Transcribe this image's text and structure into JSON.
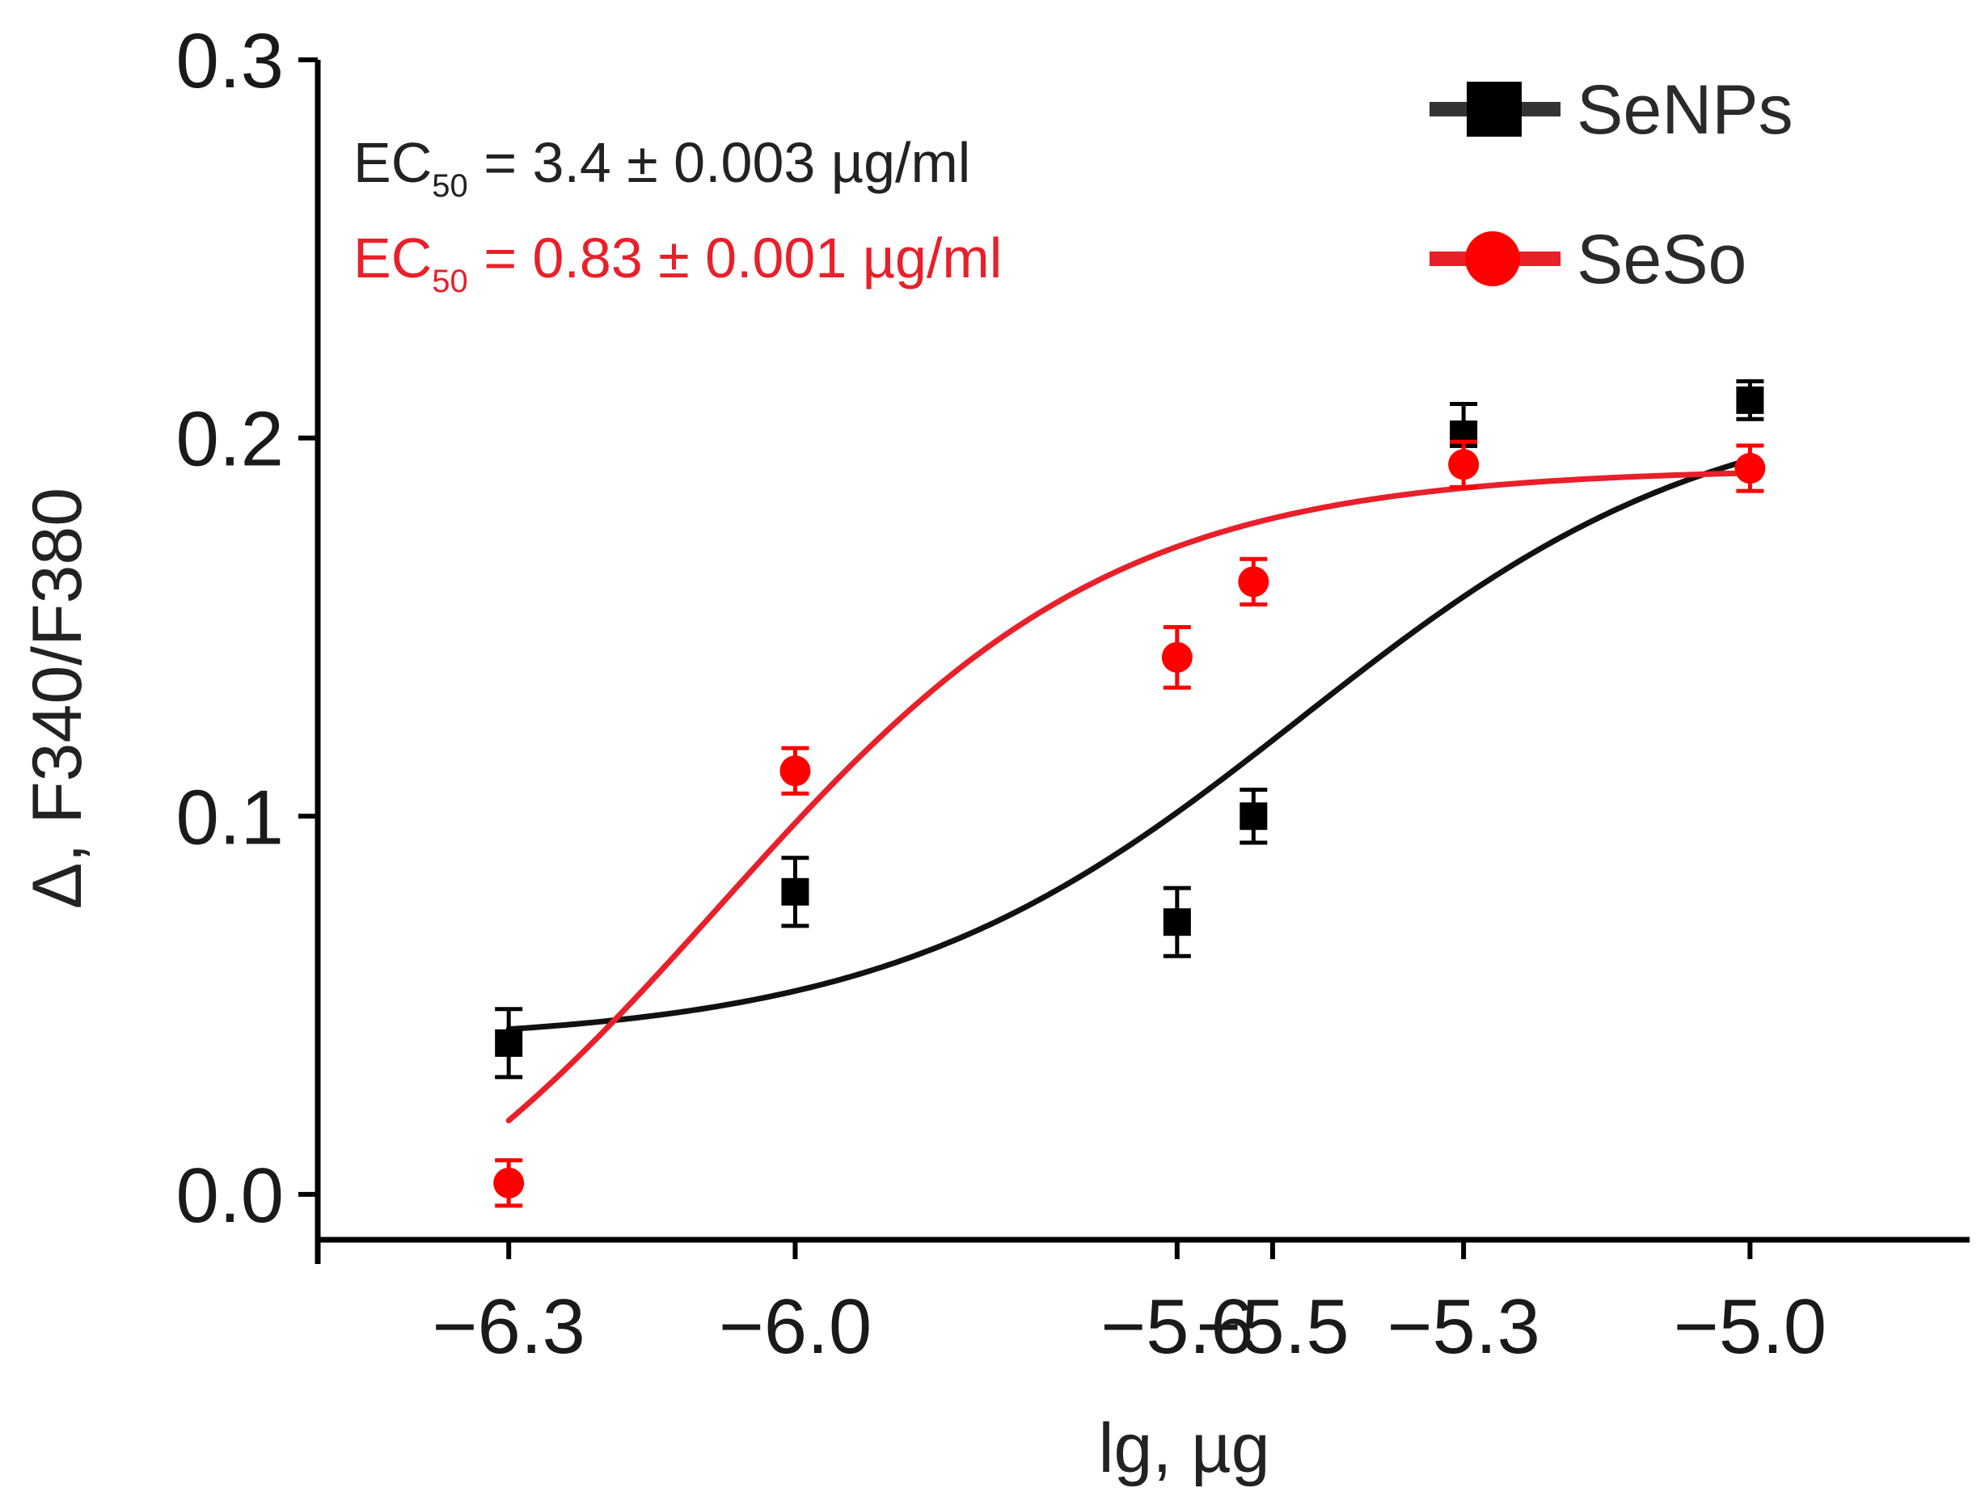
{
  "chart_data": {
    "type": "scatter",
    "title": "",
    "xlabel": "lg, µg",
    "ylabel": "Δ, F340/F380",
    "xlim": [
      -6.5,
      -4.77
    ],
    "ylim": [
      -0.012,
      0.3
    ],
    "x_ticks": [
      {
        "value": -6.3,
        "label": "−6.3"
      },
      {
        "value": -6.0,
        "label": "−6.0"
      },
      {
        "value": -5.6,
        "label": "−5.6"
      },
      {
        "value": -5.5,
        "label": "−5.5"
      },
      {
        "value": -5.3,
        "label": "−5.3"
      },
      {
        "value": -5.0,
        "label": "−5.0"
      }
    ],
    "y_ticks": [
      {
        "value": 0.0,
        "label": "0.0"
      },
      {
        "value": 0.1,
        "label": "0.1"
      },
      {
        "value": 0.2,
        "label": "0.2"
      },
      {
        "value": 0.3,
        "label": "0.3"
      }
    ],
    "grid": false,
    "legend_position": "top-right",
    "series": [
      {
        "name": "SeNPs",
        "marker": "square",
        "color": "#000000",
        "line_color": "#111111",
        "x": [
          -6.3,
          -6.0,
          -5.6,
          -5.52,
          -5.3,
          -5.0
        ],
        "y": [
          0.04,
          0.08,
          0.072,
          0.1,
          0.201,
          0.21
        ],
        "err": [
          0.009,
          0.009,
          0.009,
          0.007,
          0.008,
          0.005
        ],
        "fit": {
          "bottom": 0.04,
          "top": 0.212,
          "logEC50": -5.47,
          "hill": 2.0
        }
      },
      {
        "name": "SeSo",
        "marker": "circle",
        "color": "#ff0000",
        "line_color": "#e8202a",
        "x": [
          -6.3,
          -6.0,
          -5.6,
          -5.52,
          -5.3,
          -5.0
        ],
        "y": [
          0.003,
          0.112,
          0.142,
          0.162,
          0.193,
          0.192
        ],
        "err": [
          0.006,
          0.006,
          0.008,
          0.006,
          0.006,
          0.006
        ],
        "fit": {
          "bottom": -0.04,
          "top": 0.192,
          "logEC50": -6.08,
          "hill": 2.1
        }
      }
    ],
    "annotations": [
      {
        "prefix": "EC",
        "sub": "50",
        "text": " = 3.4 ± 0.003 µg/ml",
        "color": "#222222"
      },
      {
        "prefix": "EC",
        "sub": "50",
        "text": " = 0.83 ± 0.001 µg/ml",
        "color": "#e8202a"
      }
    ]
  }
}
